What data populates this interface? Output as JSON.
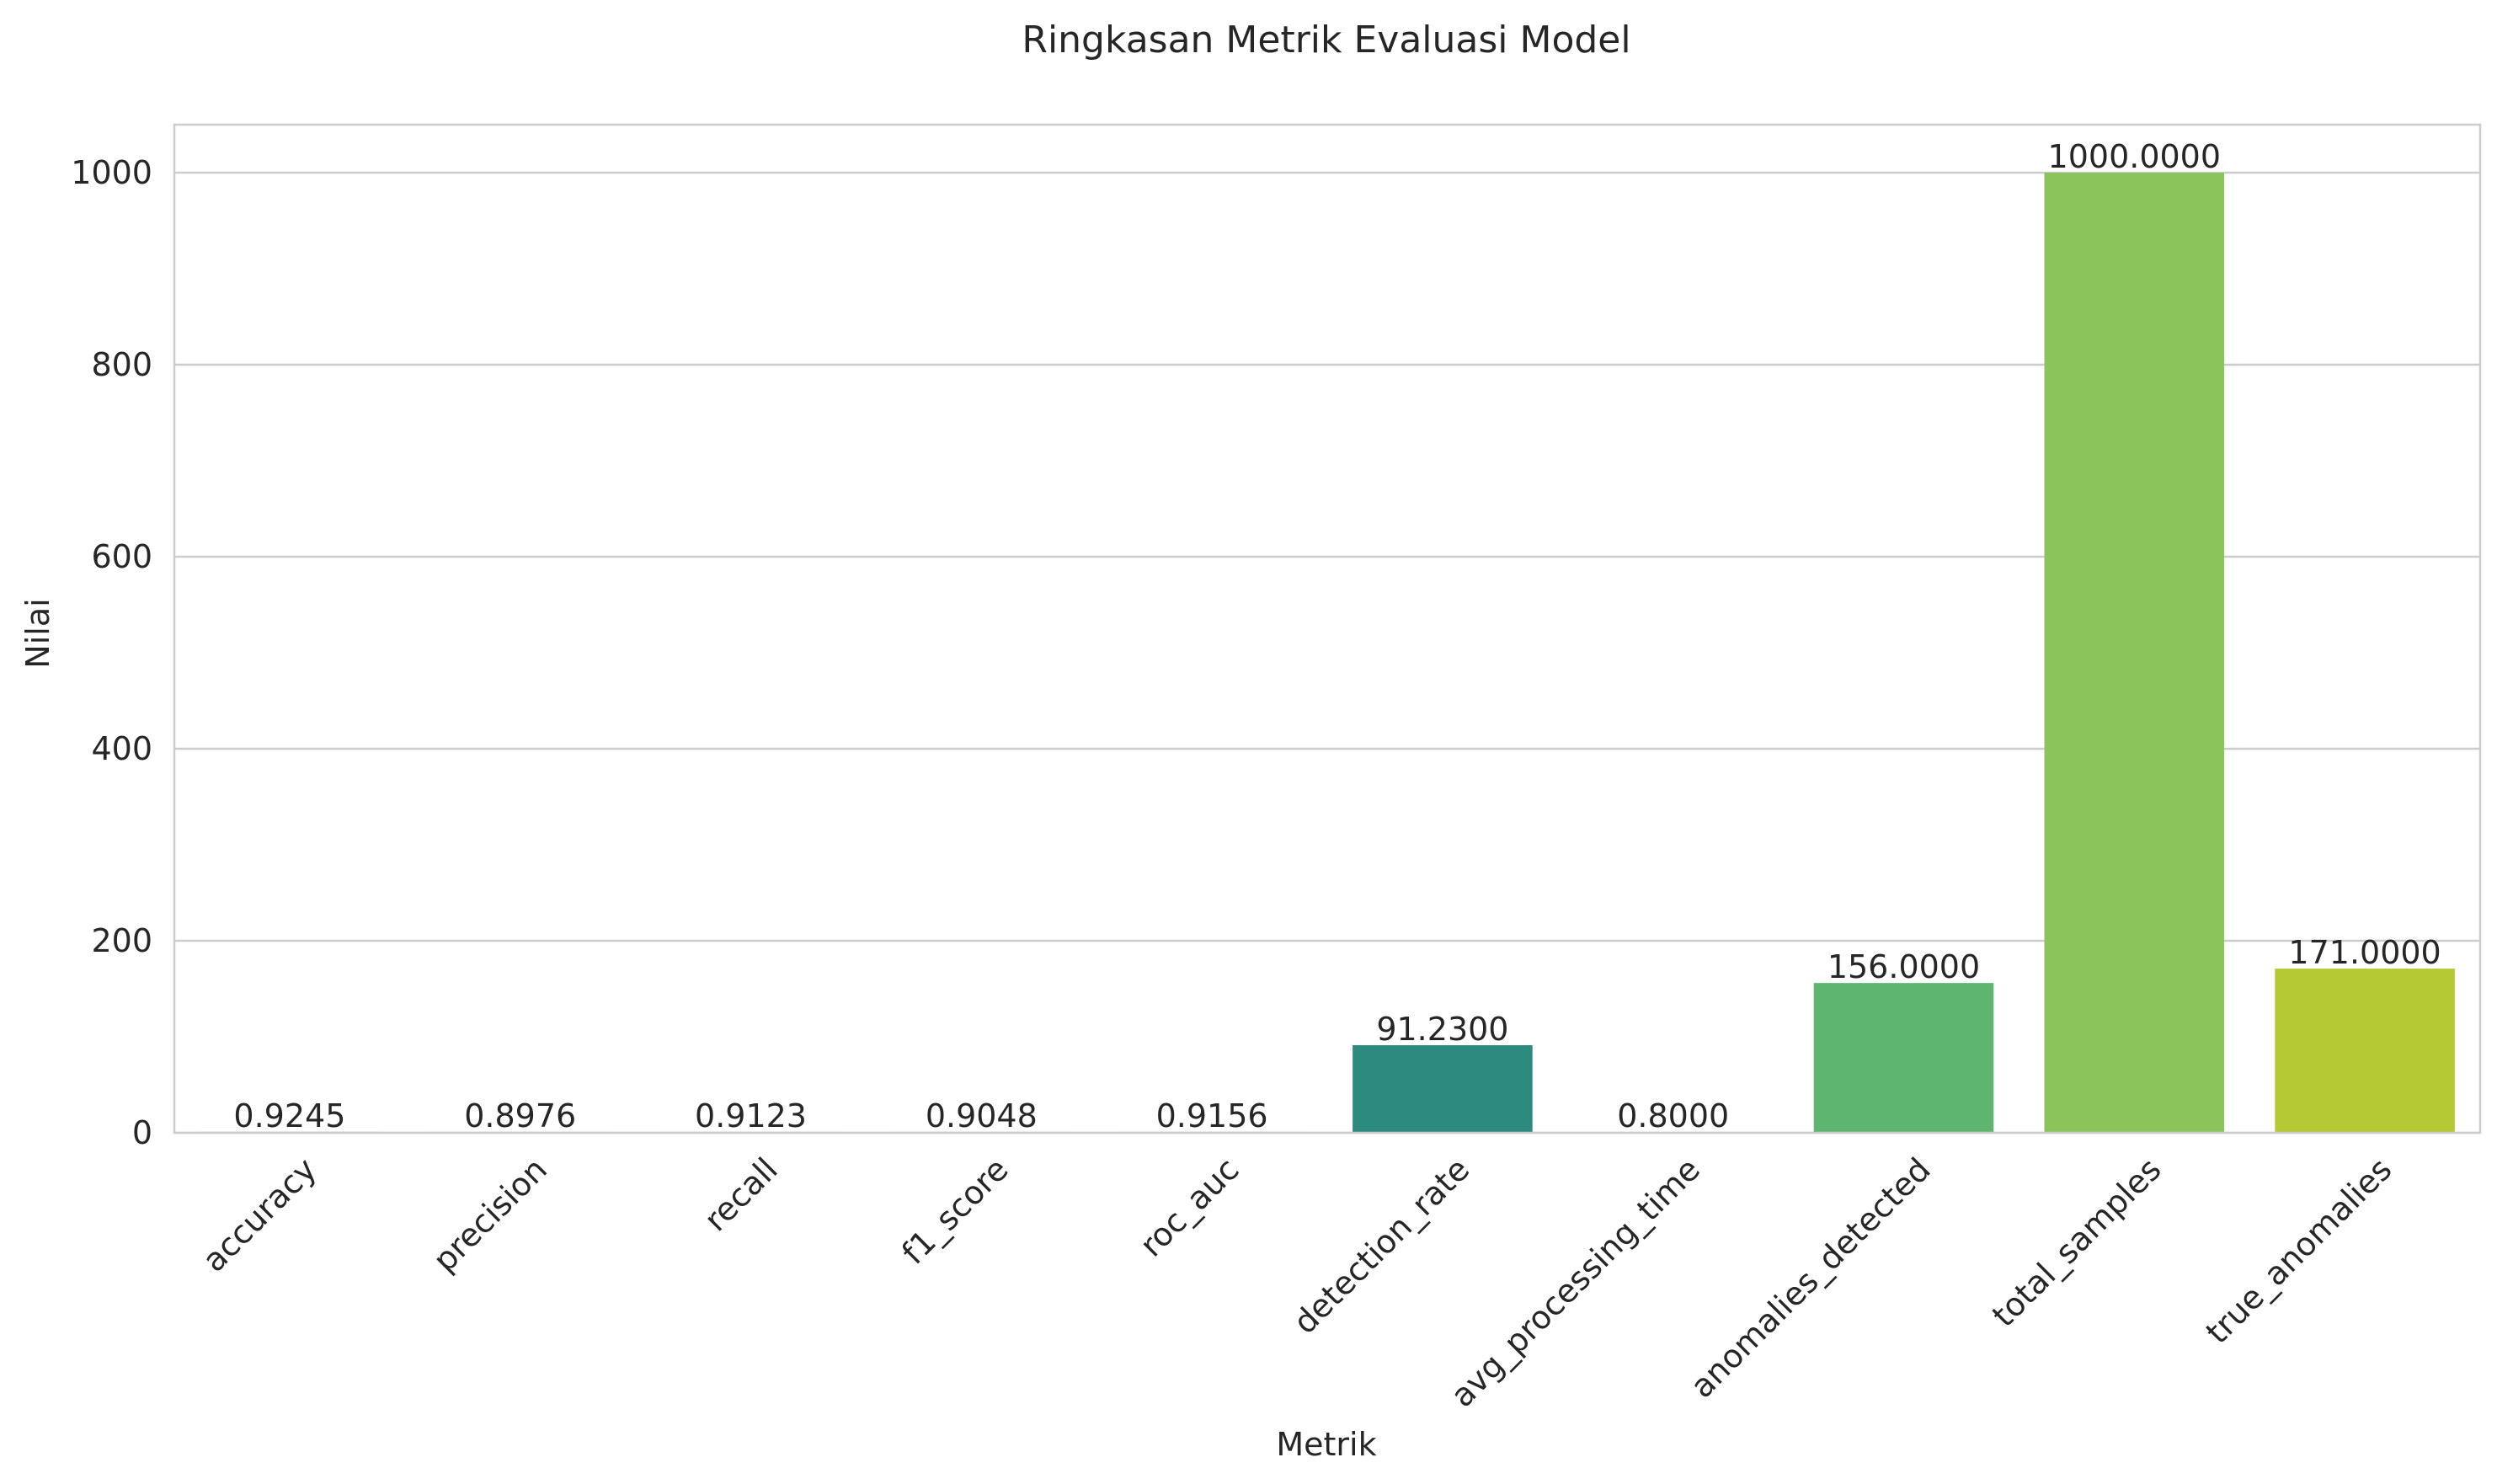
{
  "chart_data": {
    "type": "bar",
    "title": "Ringkasan Metrik Evaluasi Model",
    "xlabel": "Metrik",
    "ylabel": "Nilai",
    "categories": [
      "accuracy",
      "precision",
      "recall",
      "f1_score",
      "roc_auc",
      "detection_rate",
      "avg_processing_time",
      "anomalies_detected",
      "total_samples",
      "true_anomalies"
    ],
    "values": [
      0.9245,
      0.8976,
      0.9123,
      0.9048,
      0.9156,
      91.23,
      0.8,
      156.0,
      1000.0,
      171.0
    ],
    "value_labels": [
      "0.9245",
      "0.8976",
      "0.9123",
      "0.9048",
      "0.9156",
      "91.2300",
      "0.8000",
      "156.0000",
      "1000.0000",
      "171.0000"
    ],
    "colors": [
      "#482677",
      "#453781",
      "#3e4a89",
      "#33638d",
      "#2a788e",
      "#2d8a7f",
      "#1fa187",
      "#5db570",
      "#8bc45a",
      "#b5c935"
    ],
    "ylim": [
      0,
      1050
    ],
    "yticks": [
      0,
      200,
      400,
      600,
      800,
      1000
    ],
    "grid": "horizontal",
    "legend": "none"
  }
}
